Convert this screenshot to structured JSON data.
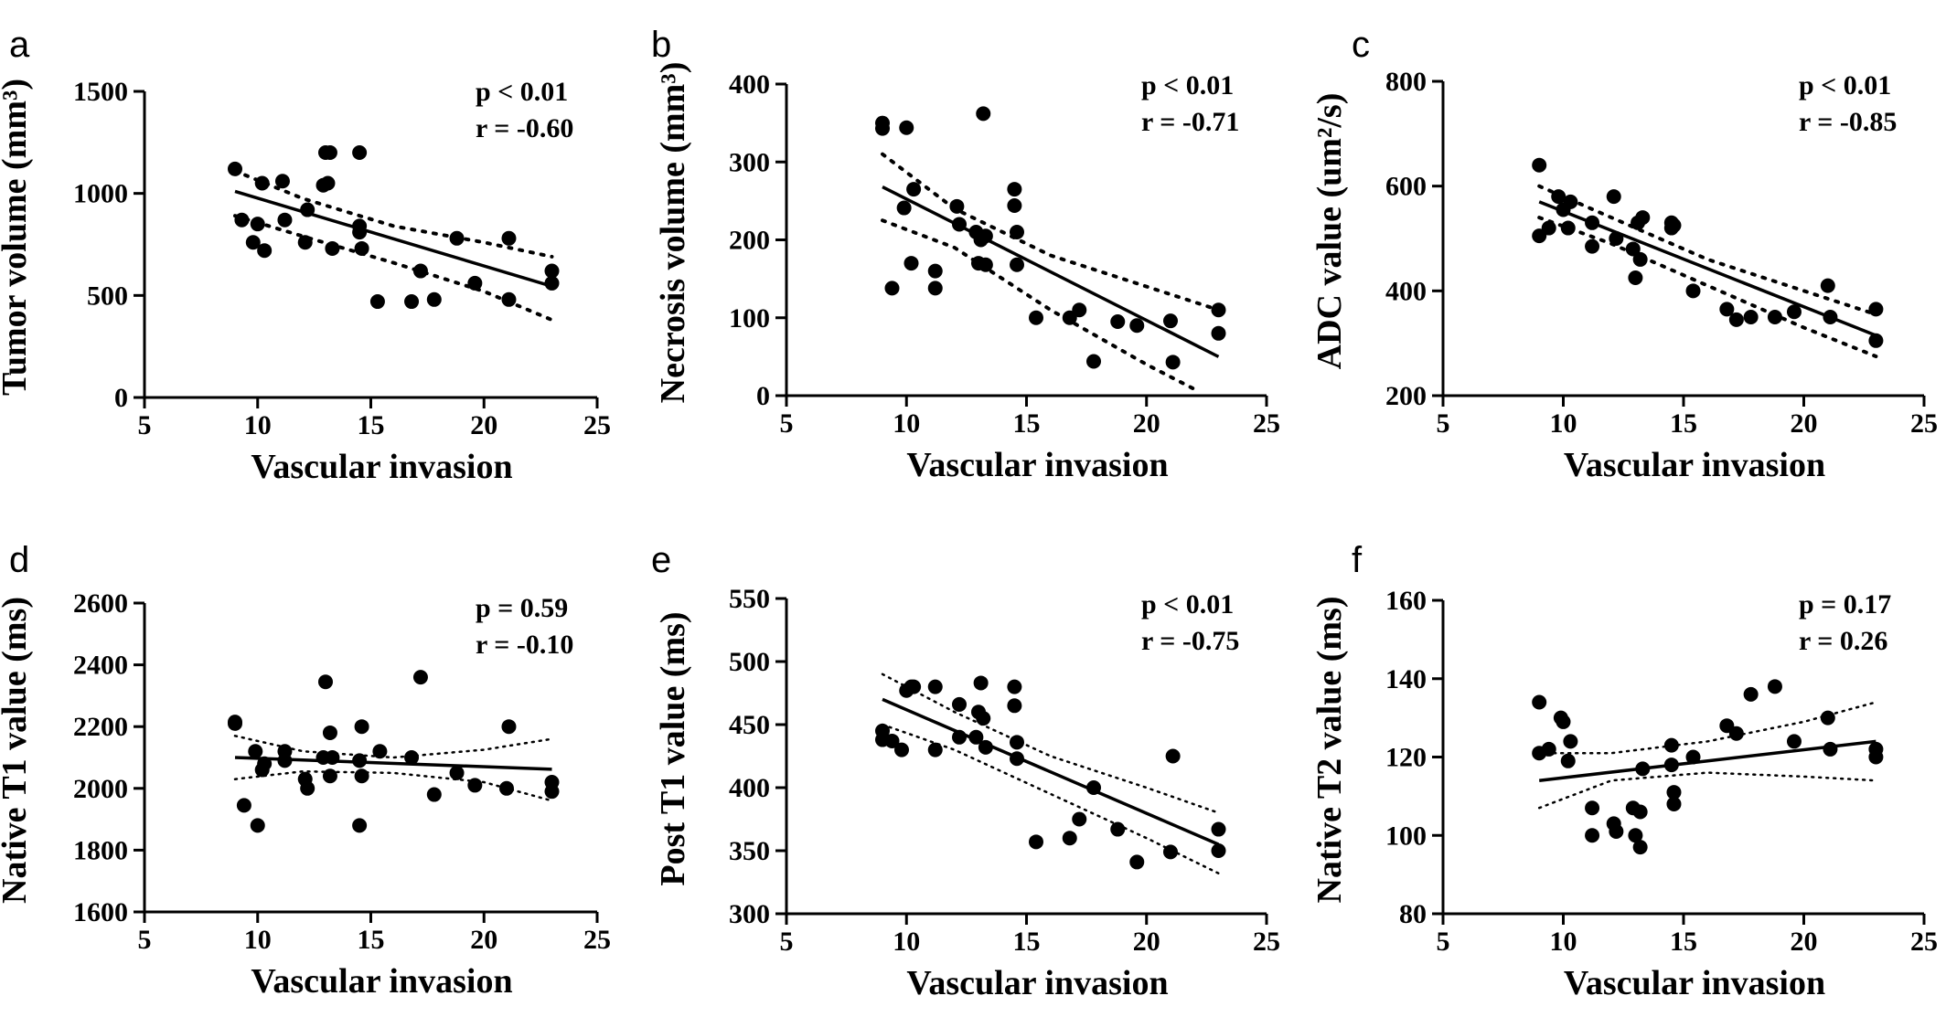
{
  "chart_data": [
    {
      "panel": "a",
      "type": "scatter",
      "xlabel": "Vascular invasion",
      "ylabel": "Tumor volume (mm³)",
      "xlim": [
        5,
        25
      ],
      "ylim": [
        0,
        1500
      ],
      "xticks": [
        5,
        10,
        15,
        20,
        25
      ],
      "yticks": [
        0,
        500,
        1000,
        1500
      ],
      "stats": [
        "p < 0.01",
        "r = -0.60"
      ],
      "fit": [
        [
          9,
          1010
        ],
        [
          23,
          545
        ]
      ],
      "ci_upper": [
        [
          9,
          1110
        ],
        [
          12,
          975
        ],
        [
          16,
          840
        ],
        [
          20,
          760
        ],
        [
          23,
          690
        ]
      ],
      "ci_lower": [
        [
          9,
          890
        ],
        [
          12,
          790
        ],
        [
          16,
          660
        ],
        [
          20,
          520
        ],
        [
          23,
          380
        ]
      ],
      "points": [
        [
          9,
          1120
        ],
        [
          9.3,
          870
        ],
        [
          9.8,
          760
        ],
        [
          10,
          850
        ],
        [
          10.2,
          1050
        ],
        [
          10.3,
          720
        ],
        [
          11.1,
          1060
        ],
        [
          11.2,
          870
        ],
        [
          12.1,
          760
        ],
        [
          12.2,
          920
        ],
        [
          12.9,
          1040
        ],
        [
          13,
          1200
        ],
        [
          13.1,
          1050
        ],
        [
          13.2,
          1200
        ],
        [
          13.3,
          730
        ],
        [
          14.5,
          840
        ],
        [
          14.5,
          1200
        ],
        [
          14.5,
          810
        ],
        [
          14.6,
          730
        ],
        [
          15.3,
          470
        ],
        [
          16.8,
          470
        ],
        [
          17.2,
          620
        ],
        [
          17.8,
          480
        ],
        [
          18.8,
          780
        ],
        [
          19.6,
          560
        ],
        [
          21.1,
          780
        ],
        [
          21.1,
          480
        ],
        [
          23,
          620
        ],
        [
          23,
          560
        ]
      ]
    },
    {
      "panel": "b",
      "type": "scatter",
      "xlabel": "Vascular invasion",
      "ylabel": "Necrosis volume (mm³)",
      "xlim": [
        5,
        25
      ],
      "ylim": [
        0,
        400
      ],
      "xticks": [
        5,
        10,
        15,
        20,
        25
      ],
      "yticks": [
        0,
        100,
        200,
        300,
        400
      ],
      "stats": [
        "p < 0.01",
        "r = -0.71"
      ],
      "fit": [
        [
          9,
          268
        ],
        [
          23,
          50
        ]
      ],
      "ci_upper": [
        [
          9,
          310
        ],
        [
          12,
          240
        ],
        [
          16,
          180
        ],
        [
          20,
          140
        ],
        [
          23,
          110
        ]
      ],
      "ci_lower": [
        [
          9,
          225
        ],
        [
          12,
          190
        ],
        [
          16,
          110
        ],
        [
          20,
          40
        ],
        [
          22.2,
          5
        ]
      ],
      "points": [
        [
          9,
          350
        ],
        [
          9,
          343
        ],
        [
          9.4,
          138
        ],
        [
          9.9,
          241
        ],
        [
          10,
          344
        ],
        [
          10.2,
          170
        ],
        [
          10.3,
          265
        ],
        [
          11.2,
          160
        ],
        [
          11.2,
          138
        ],
        [
          12.1,
          243
        ],
        [
          12.2,
          220
        ],
        [
          12.9,
          210
        ],
        [
          13,
          170
        ],
        [
          13.1,
          200
        ],
        [
          13.2,
          362
        ],
        [
          13.3,
          205
        ],
        [
          13.3,
          168
        ],
        [
          14.5,
          265
        ],
        [
          14.5,
          244
        ],
        [
          14.6,
          210
        ],
        [
          14.6,
          168
        ],
        [
          15.4,
          100
        ],
        [
          16.8,
          100
        ],
        [
          17.2,
          110
        ],
        [
          17.8,
          44
        ],
        [
          18.8,
          95
        ],
        [
          19.6,
          90
        ],
        [
          21,
          96
        ],
        [
          21.1,
          43
        ],
        [
          23,
          110
        ],
        [
          23,
          80
        ]
      ]
    },
    {
      "panel": "c",
      "type": "scatter",
      "xlabel": "Vascular invasion",
      "ylabel": "ADC value (um²/s)",
      "xlim": [
        5,
        25
      ],
      "ylim": [
        200,
        800
      ],
      "xticks": [
        5,
        10,
        15,
        20,
        25
      ],
      "yticks": [
        200,
        400,
        600,
        800
      ],
      "stats": [
        "p < 0.01",
        "r = -0.85"
      ],
      "fit": [
        [
          9,
          570
        ],
        [
          23,
          315
        ]
      ],
      "ci_upper": [
        [
          9,
          600
        ],
        [
          12,
          540
        ],
        [
          16,
          460
        ],
        [
          20,
          400
        ],
        [
          23,
          355
        ]
      ],
      "ci_lower": [
        [
          9,
          540
        ],
        [
          12,
          490
        ],
        [
          16,
          410
        ],
        [
          20,
          330
        ],
        [
          23,
          275
        ]
      ],
      "points": [
        [
          9,
          640
        ],
        [
          9,
          505
        ],
        [
          9.4,
          520
        ],
        [
          9.8,
          580
        ],
        [
          10,
          555
        ],
        [
          10.2,
          520
        ],
        [
          10.3,
          570
        ],
        [
          11.2,
          530
        ],
        [
          11.2,
          485
        ],
        [
          12.1,
          580
        ],
        [
          12.2,
          500
        ],
        [
          12.9,
          480
        ],
        [
          13,
          425
        ],
        [
          13.1,
          530
        ],
        [
          13.2,
          460
        ],
        [
          13.3,
          540
        ],
        [
          14.5,
          530
        ],
        [
          14.5,
          520
        ],
        [
          14.6,
          525
        ],
        [
          15.4,
          400
        ],
        [
          16.8,
          365
        ],
        [
          17.2,
          345
        ],
        [
          17.8,
          350
        ],
        [
          18.8,
          350
        ],
        [
          19.6,
          360
        ],
        [
          21,
          410
        ],
        [
          21.1,
          350
        ],
        [
          23,
          365
        ],
        [
          23,
          305
        ]
      ]
    },
    {
      "panel": "d",
      "type": "scatter",
      "xlabel": "Vascular invasion",
      "ylabel": "Native T1 value (ms)",
      "xlim": [
        5,
        25
      ],
      "ylim": [
        1600,
        2600
      ],
      "xticks": [
        5,
        10,
        15,
        20,
        25
      ],
      "yticks": [
        1600,
        1800,
        2000,
        2200,
        2400,
        2600
      ],
      "stats": [
        "p = 0.59",
        "r = -0.10"
      ],
      "fit": [
        [
          9,
          2100
        ],
        [
          23,
          2062
        ]
      ],
      "ci_upper": [
        [
          9,
          2170
        ],
        [
          12,
          2120
        ],
        [
          16,
          2100
        ],
        [
          20,
          2125
        ],
        [
          23,
          2160
        ]
      ],
      "ci_lower": [
        [
          9,
          2030
        ],
        [
          12,
          2055
        ],
        [
          16,
          2050
        ],
        [
          20,
          2020
        ],
        [
          23,
          1960
        ]
      ],
      "points": [
        [
          9,
          2210
        ],
        [
          9,
          2215
        ],
        [
          9.4,
          1945
        ],
        [
          9.9,
          2120
        ],
        [
          10,
          1880
        ],
        [
          10.2,
          2060
        ],
        [
          10.3,
          2080
        ],
        [
          11.2,
          2120
        ],
        [
          11.2,
          2090
        ],
        [
          12.1,
          2030
        ],
        [
          12.2,
          2000
        ],
        [
          12.9,
          2100
        ],
        [
          13,
          2345
        ],
        [
          13.2,
          2180
        ],
        [
          13.2,
          2040
        ],
        [
          13.3,
          2100
        ],
        [
          14.5,
          2090
        ],
        [
          14.5,
          1880
        ],
        [
          14.6,
          2200
        ],
        [
          14.6,
          2040
        ],
        [
          15.4,
          2120
        ],
        [
          16.8,
          2100
        ],
        [
          17.2,
          2360
        ],
        [
          17.8,
          1980
        ],
        [
          18.8,
          2050
        ],
        [
          19.6,
          2010
        ],
        [
          21,
          2000
        ],
        [
          21.1,
          2200
        ],
        [
          23,
          2020
        ],
        [
          23,
          1990
        ]
      ]
    },
    {
      "panel": "e",
      "type": "scatter",
      "xlabel": "Vascular invasion",
      "ylabel": "Post T1 value (ms)",
      "xlim": [
        5,
        25
      ],
      "ylim": [
        300,
        550
      ],
      "xticks": [
        5,
        10,
        15,
        20,
        25
      ],
      "yticks": [
        300,
        350,
        400,
        450,
        500,
        550
      ],
      "stats": [
        "p < 0.01",
        "r = -0.75"
      ],
      "fit": [
        [
          9,
          470
        ],
        [
          23,
          355
        ]
      ],
      "ci_upper": [
        [
          9,
          490
        ],
        [
          12,
          460
        ],
        [
          16,
          425
        ],
        [
          20,
          400
        ],
        [
          23,
          380
        ]
      ],
      "ci_lower": [
        [
          9,
          450
        ],
        [
          12,
          430
        ],
        [
          16,
          395
        ],
        [
          20,
          360
        ],
        [
          23,
          332
        ]
      ],
      "points": [
        [
          9,
          445
        ],
        [
          9,
          438
        ],
        [
          9.4,
          437
        ],
        [
          9.8,
          430
        ],
        [
          10,
          477
        ],
        [
          10.2,
          480
        ],
        [
          10.3,
          480
        ],
        [
          11.2,
          480
        ],
        [
          11.2,
          430
        ],
        [
          12.2,
          466
        ],
        [
          12.2,
          440
        ],
        [
          12.9,
          440
        ],
        [
          13,
          460
        ],
        [
          13.1,
          483
        ],
        [
          13.2,
          455
        ],
        [
          13.3,
          432
        ],
        [
          14.5,
          480
        ],
        [
          14.5,
          465
        ],
        [
          14.6,
          436
        ],
        [
          14.6,
          423
        ],
        [
          15.4,
          357
        ],
        [
          16.8,
          360
        ],
        [
          17.2,
          375
        ],
        [
          17.8,
          400
        ],
        [
          18.8,
          367
        ],
        [
          19.6,
          341
        ],
        [
          21,
          349
        ],
        [
          21.1,
          425
        ],
        [
          23,
          367
        ],
        [
          23,
          350
        ]
      ]
    },
    {
      "panel": "f",
      "type": "scatter",
      "xlabel": "Vascular invasion",
      "ylabel": "Native T2 value (ms)",
      "xlim": [
        5,
        25
      ],
      "ylim": [
        80,
        160
      ],
      "xticks": [
        5,
        10,
        15,
        20,
        25
      ],
      "yticks": [
        80,
        100,
        120,
        140,
        160
      ],
      "stats": [
        "p = 0.17",
        "r = 0.26"
      ],
      "fit": [
        [
          9,
          114
        ],
        [
          23,
          124
        ]
      ],
      "ci_upper": [
        [
          9,
          121
        ],
        [
          12,
          121
        ],
        [
          16,
          124
        ],
        [
          20,
          129
        ],
        [
          23,
          134
        ]
      ],
      "ci_lower": [
        [
          9,
          107
        ],
        [
          12,
          114
        ],
        [
          16,
          116
        ],
        [
          20,
          115
        ],
        [
          23,
          114
        ]
      ],
      "points": [
        [
          9,
          134
        ],
        [
          9,
          121
        ],
        [
          9.4,
          122
        ],
        [
          9.9,
          130
        ],
        [
          10,
          129
        ],
        [
          10.2,
          119
        ],
        [
          10.3,
          124
        ],
        [
          11.2,
          107
        ],
        [
          11.2,
          100
        ],
        [
          12.1,
          103
        ],
        [
          12.2,
          101
        ],
        [
          12.9,
          107
        ],
        [
          13,
          100
        ],
        [
          13.2,
          106
        ],
        [
          13.2,
          97
        ],
        [
          13.3,
          117
        ],
        [
          14.5,
          123
        ],
        [
          14.5,
          118
        ],
        [
          14.6,
          111
        ],
        [
          14.6,
          108
        ],
        [
          15.4,
          120
        ],
        [
          16.8,
          128
        ],
        [
          17.2,
          126
        ],
        [
          17.8,
          136
        ],
        [
          18.8,
          138
        ],
        [
          19.6,
          124
        ],
        [
          21,
          130
        ],
        [
          21.1,
          122
        ],
        [
          23,
          122
        ],
        [
          23,
          120
        ]
      ]
    }
  ]
}
